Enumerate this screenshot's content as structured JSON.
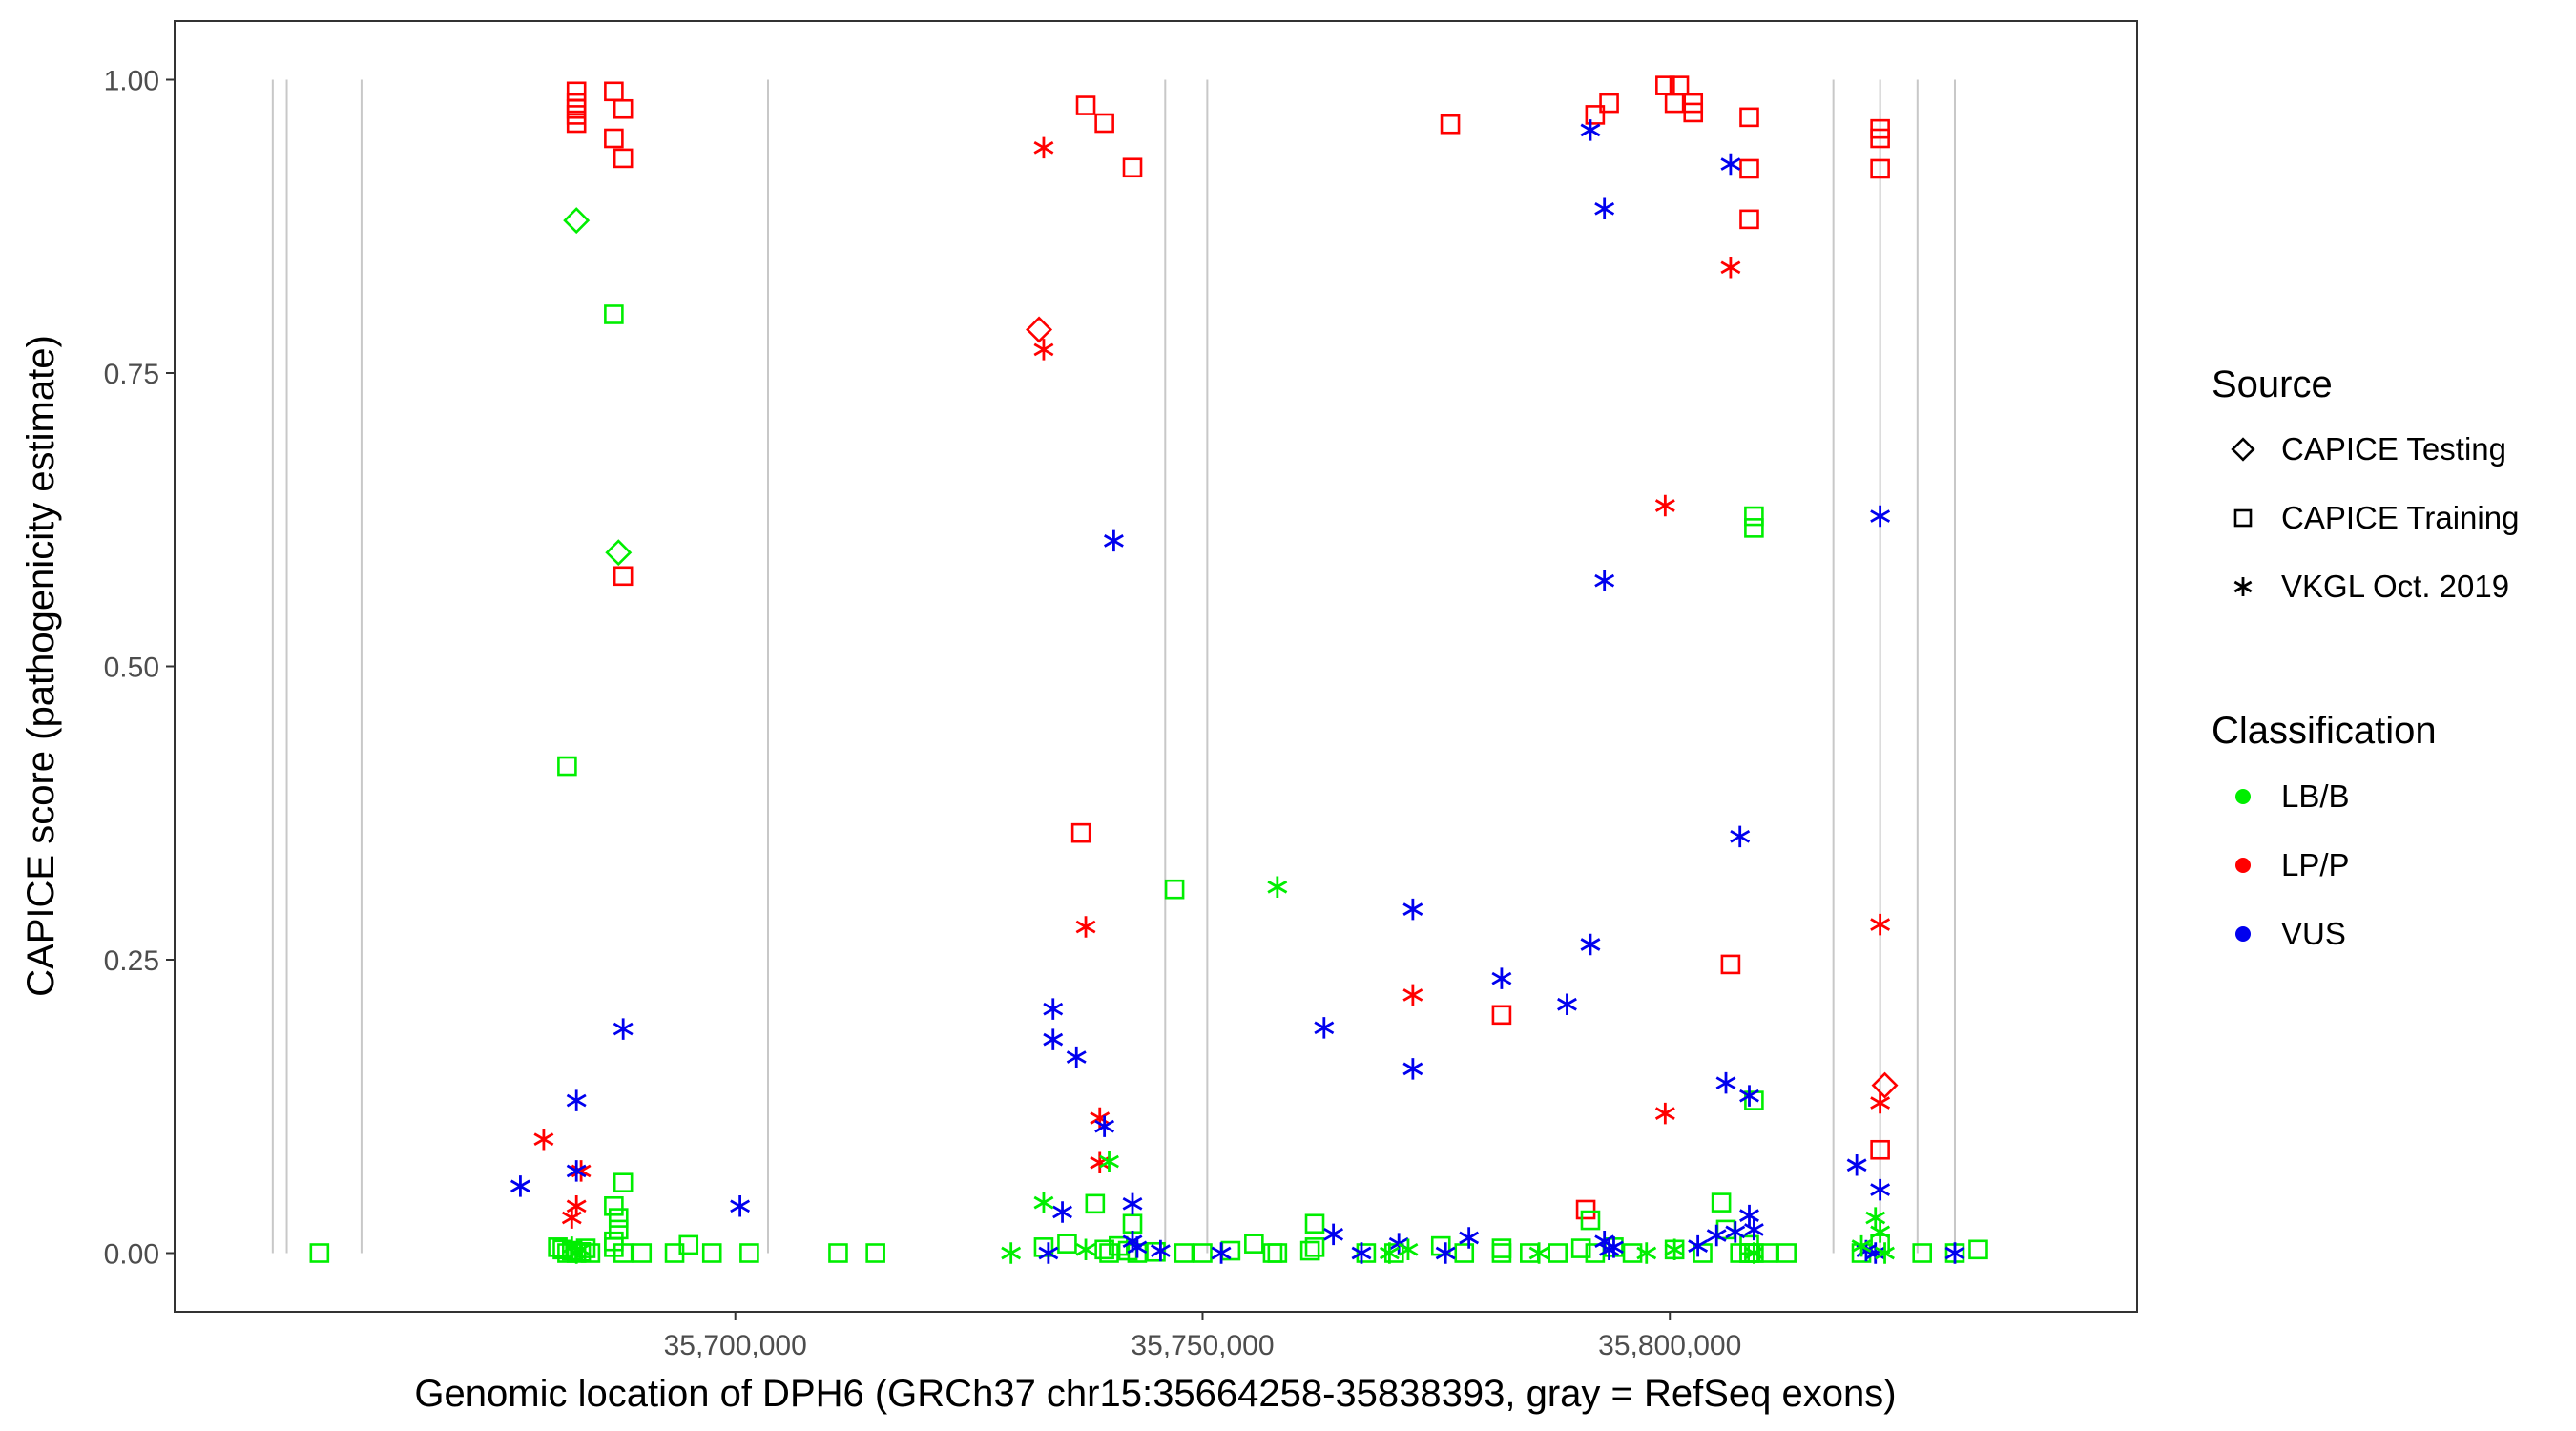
{
  "chart_data": {
    "type": "scatter",
    "title": "",
    "xlabel": "Genomic location of DPH6 (GRCh37 chr15:35664258-35838393, gray = RefSeq exons)",
    "ylabel": "CAPICE score (pathogenicity estimate)",
    "xlim": [
      35640000,
      35850000
    ],
    "ylim": [
      -0.05,
      1.05
    ],
    "x_ticks": [
      35700000,
      35750000,
      35800000
    ],
    "x_tick_labels": [
      "35,700,000",
      "35,750,000",
      "35,800,000"
    ],
    "y_ticks": [
      0,
      0.25,
      0.5,
      0.75,
      1.0
    ],
    "y_tick_labels": [
      "0.00",
      "0.25",
      "0.50",
      "0.75",
      "1.00"
    ],
    "grid": false,
    "exon_lines_x": [
      35650500,
      35652000,
      35660000,
      35703500,
      35746000,
      35750500,
      35817500,
      35822500,
      35826500,
      35830500
    ],
    "legend_placement": "right",
    "legend": {
      "shape_title": "Source",
      "shape_items": [
        {
          "label": "CAPICE Testing",
          "shape": "diamond"
        },
        {
          "label": "CAPICE Training",
          "shape": "square"
        },
        {
          "label": "VKGL Oct. 2019",
          "shape": "asterisk"
        }
      ],
      "color_title": "Classification",
      "color_items": [
        {
          "label": "LB/B",
          "color": "#00ee00"
        },
        {
          "label": "LP/P",
          "color": "#ff0000"
        },
        {
          "label": "VUS",
          "color": "#0000ee"
        }
      ]
    },
    "series": [
      {
        "source": "CAPICE Testing",
        "classification": "LB/B",
        "x": [
          35683000,
          35687500
        ],
        "y": [
          0.88,
          0.597
        ]
      },
      {
        "source": "CAPICE Testing",
        "classification": "LP/P",
        "x": [
          35732500,
          35823000
        ],
        "y": [
          0.787,
          0.143
        ]
      },
      {
        "source": "CAPICE Training",
        "classification": "LP/P",
        "x": [
          35683000,
          35683000,
          35683000,
          35683000,
          35683000,
          35687000,
          35688000,
          35687000,
          35688000,
          35688000,
          35737500,
          35739500,
          35742500,
          35776500,
          35792000,
          35793500,
          35799500,
          35801000,
          35800500,
          35802500,
          35802500,
          35808500,
          35808500,
          35808500,
          35822500,
          35822500,
          35822500,
          35737000,
          35782000,
          35791000,
          35806500,
          35822500
        ],
        "y": [
          0.99,
          0.98,
          0.975,
          0.97,
          0.963,
          0.99,
          0.975,
          0.95,
          0.933,
          0.577,
          0.978,
          0.963,
          0.925,
          0.962,
          0.97,
          0.98,
          0.995,
          0.995,
          0.98,
          0.98,
          0.972,
          0.968,
          0.924,
          0.881,
          0.958,
          0.95,
          0.924,
          0.358,
          0.203,
          0.037,
          0.246,
          0.088
        ]
      },
      {
        "source": "CAPICE Training",
        "classification": "LB/B",
        "x": [
          35655500,
          35682000,
          35687000,
          35687000,
          35687500,
          35687500,
          35687000,
          35687000,
          35688000,
          35688000,
          35681000,
          35681500,
          35682000,
          35682500,
          35683000,
          35683500,
          35684000,
          35684500,
          35690000,
          35693500,
          35695000,
          35697500,
          35701500,
          35711000,
          35715000,
          35733000,
          35735500,
          35738500,
          35739500,
          35740000,
          35741000,
          35742000,
          35743000,
          35745000,
          35748000,
          35750000,
          35753000,
          35755500,
          35757500,
          35758000,
          35761500,
          35762000,
          35767500,
          35770500,
          35775500,
          35778000,
          35782000,
          35782000,
          35785000,
          35788000,
          35790500,
          35792000,
          35794000,
          35796000,
          35800500,
          35803500,
          35806000,
          35807500,
          35808500,
          35808500,
          35808500,
          35809000,
          35810500,
          35812500,
          35820500,
          35822500,
          35827000,
          35830500,
          35833000,
          35747000,
          35762000,
          35742500,
          35791500,
          35805500,
          35809000,
          35809000,
          35809000
        ],
        "y": [
          0.0,
          0.415,
          0.8,
          0.04,
          0.03,
          0.02,
          0.01,
          0.005,
          0.06,
          0.0,
          0.005,
          0.003,
          0.0,
          0.002,
          0.0,
          0.001,
          0.004,
          0.0,
          0.0,
          0.0,
          0.007,
          0.0,
          0.0,
          0.0,
          0.0,
          0.005,
          0.008,
          0.042,
          0.003,
          0.0,
          0.006,
          0.002,
          0.0,
          0.001,
          0.0,
          0.0,
          0.002,
          0.008,
          0.0,
          0.0,
          0.002,
          0.005,
          0.0,
          0.0,
          0.006,
          0.0,
          0.0,
          0.004,
          0.0,
          0.0,
          0.004,
          0.0,
          0.005,
          0.0,
          0.003,
          0.0,
          0.02,
          0.0,
          0.007,
          0.0,
          0.0,
          0.0,
          0.0,
          0.0,
          0.0,
          0.008,
          0.0,
          0.0,
          0.003,
          0.31,
          0.025,
          0.025,
          0.028,
          0.043,
          0.628,
          0.618,
          0.13
        ]
      },
      {
        "source": "VKGL Oct. 2019",
        "classification": "LP/P",
        "x": [
          35733000,
          35733000,
          35737500,
          35739000,
          35739000,
          35772500,
          35799500,
          35799500,
          35806500,
          35822500,
          35822500,
          35679500,
          35683500,
          35683000,
          35682500
        ],
        "y": [
          0.942,
          0.77,
          0.278,
          0.115,
          0.077,
          0.22,
          0.637,
          0.119,
          0.84,
          0.28,
          0.128,
          0.097,
          0.07,
          0.04,
          0.03
        ]
      },
      {
        "source": "VKGL Oct. 2019",
        "classification": "VUS",
        "x": [
          35677000,
          35683000,
          35683000,
          35688000,
          35700500,
          35734000,
          35734000,
          35736500,
          35735000,
          35740500,
          35739500,
          35742500,
          35742500,
          35743000,
          35752000,
          35763000,
          35764000,
          35771000,
          35772500,
          35772500,
          35778500,
          35782000,
          35789000,
          35791500,
          35791500,
          35793000,
          35793000,
          35793000,
          35793500,
          35803000,
          35806000,
          35807500,
          35806500,
          35808500,
          35808500,
          35822000,
          35822500,
          35822500,
          35820000,
          35821000,
          35830500,
          35733500,
          35745500,
          35794000,
          35776000,
          35767000,
          35805000,
          35807000,
          35809000
        ],
        "y": [
          0.057,
          0.13,
          0.07,
          0.191,
          0.04,
          0.208,
          0.182,
          0.167,
          0.035,
          0.607,
          0.108,
          0.042,
          0.01,
          0.005,
          0.0,
          0.192,
          0.016,
          0.008,
          0.157,
          0.293,
          0.013,
          0.234,
          0.212,
          0.263,
          0.957,
          0.89,
          0.573,
          0.01,
          0.003,
          0.006,
          0.145,
          0.355,
          0.928,
          0.134,
          0.032,
          0.0,
          0.628,
          0.054,
          0.075,
          0.002,
          0.0,
          0.0,
          0.002,
          0.005,
          0.0,
          0.0,
          0.015,
          0.018,
          0.02
        ]
      },
      {
        "source": "VKGL Oct. 2019",
        "classification": "LB/B",
        "x": [
          35682500,
          35683000,
          35683500,
          35729500,
          35733000,
          35737500,
          35740000,
          35758000,
          35770000,
          35772000,
          35786000,
          35797500,
          35800500,
          35809000,
          35820500,
          35822000,
          35822500,
          35823000
        ],
        "y": [
          0.005,
          0.0,
          0.003,
          0.0,
          0.043,
          0.003,
          0.078,
          0.312,
          0.0,
          0.003,
          0.0,
          0.0,
          0.003,
          0.0,
          0.006,
          0.03,
          0.018,
          0.0
        ]
      }
    ]
  }
}
